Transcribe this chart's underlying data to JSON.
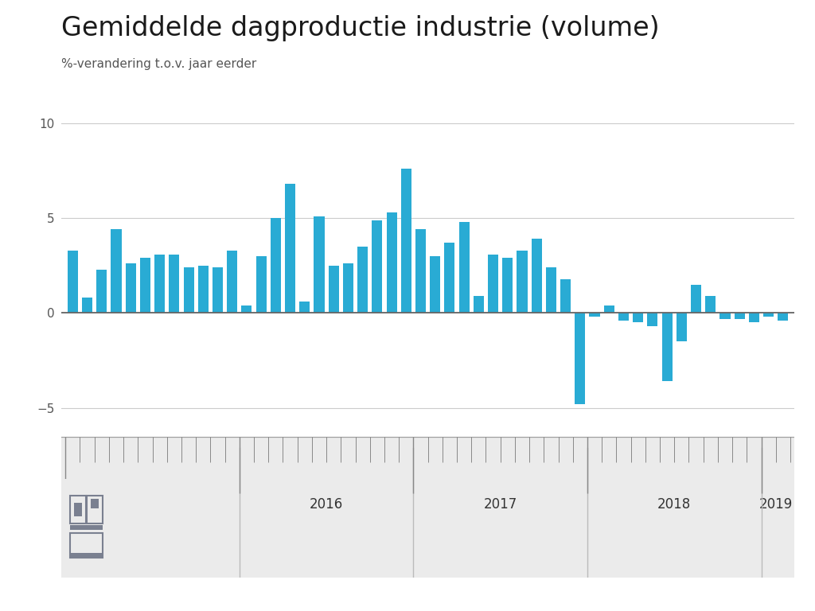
{
  "title": "Gemiddelde dagproductie industrie (volume)",
  "subtitle": "%-verandering t.o.v. jaar eerder",
  "bar_color": "#29ABD4",
  "background_color": "#FFFFFF",
  "nav_bg_color": "#EBEBEB",
  "zero_line_color": "#666666",
  "grid_color": "#CCCCCC",
  "ytick_color": "#555555",
  "ylim": [
    -6.2,
    11.5
  ],
  "yticks": [
    -5,
    0,
    5,
    10
  ],
  "year_labels": [
    "2016",
    "2017",
    "2018",
    "2019"
  ],
  "year_starts": [
    12,
    24,
    36,
    48
  ],
  "values": [
    3.3,
    0.8,
    2.3,
    4.4,
    2.6,
    2.9,
    3.1,
    3.1,
    2.4,
    2.5,
    2.4,
    3.3,
    0.4,
    3.0,
    5.0,
    6.8,
    0.6,
    5.1,
    2.5,
    2.6,
    3.5,
    4.9,
    5.3,
    7.6,
    4.4,
    3.0,
    3.7,
    4.8,
    0.9,
    3.1,
    2.9,
    3.3,
    3.9,
    2.4,
    1.8,
    -4.8,
    -0.2,
    0.4,
    -0.4,
    -0.5,
    -0.7,
    -3.6,
    -1.5,
    1.5,
    0.9,
    -0.3,
    -0.3,
    -0.5,
    -0.2,
    -0.4
  ],
  "title_fontsize": 24,
  "subtitle_fontsize": 11,
  "ytick_fontsize": 11,
  "nav_label_fontsize": 12,
  "nav_tick_color": "#888888",
  "nav_divider_color": "#BBBBBB",
  "nav_label_color": "#333333"
}
